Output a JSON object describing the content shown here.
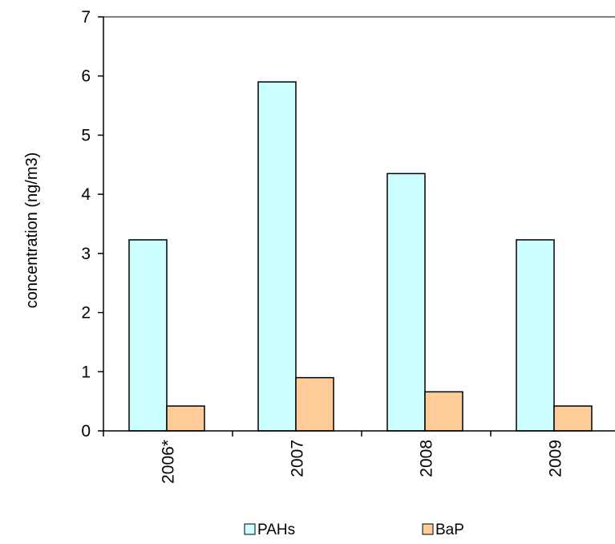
{
  "chart_data": {
    "type": "bar",
    "categories": [
      "2006*",
      "2007",
      "2008",
      "2009"
    ],
    "series": [
      {
        "name": "PAHs",
        "values": [
          3.23,
          5.9,
          4.35,
          3.23
        ],
        "color": "#ccffff"
      },
      {
        "name": "BaP",
        "values": [
          0.42,
          0.9,
          0.66,
          0.42
        ],
        "color": "#ffcc99"
      }
    ],
    "title": "",
    "xlabel": "",
    "ylabel": "concentration (ng/m3)",
    "ylim": [
      0,
      7
    ],
    "yticks": [
      0,
      1,
      2,
      3,
      4,
      5,
      6,
      7
    ],
    "grid": false,
    "legend_position": "bottom"
  }
}
